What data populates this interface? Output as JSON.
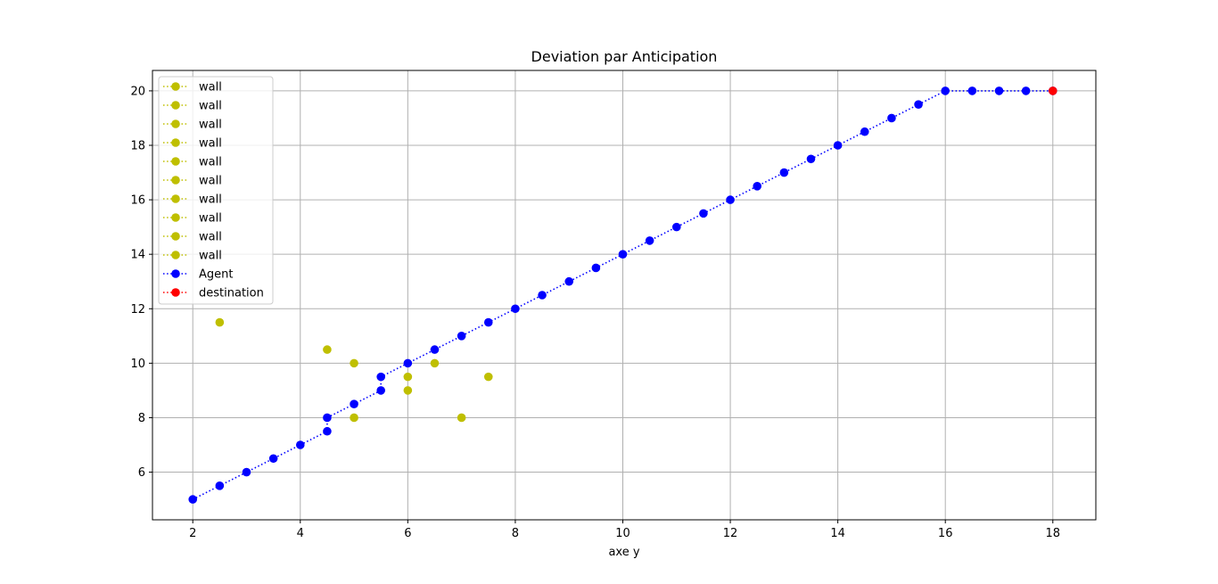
{
  "chart_data": {
    "type": "scatter",
    "title": "Deviation par Anticipation",
    "xlabel": "axe y",
    "ylabel": "",
    "xlim": [
      1.25,
      18.8
    ],
    "ylim": [
      4.25,
      20.75
    ],
    "xticks": [
      2,
      4,
      6,
      8,
      10,
      12,
      14,
      16,
      18
    ],
    "yticks": [
      6,
      8,
      10,
      12,
      14,
      16,
      18,
      20
    ],
    "grid": true,
    "legend_position": "upper-left",
    "series": [
      {
        "name": "wall",
        "color": "#bfbf00",
        "linestyle": "dotted",
        "marker": "circle",
        "x": [
          2.5
        ],
        "y": [
          11.5
        ]
      },
      {
        "name": "wall",
        "color": "#bfbf00",
        "linestyle": "dotted",
        "marker": "circle",
        "x": [
          4.5
        ],
        "y": [
          10.5
        ]
      },
      {
        "name": "wall",
        "color": "#bfbf00",
        "linestyle": "dotted",
        "marker": "circle",
        "x": [
          5
        ],
        "y": [
          10
        ]
      },
      {
        "name": "wall",
        "color": "#bfbf00",
        "linestyle": "dotted",
        "marker": "circle",
        "x": [
          5
        ],
        "y": [
          8
        ]
      },
      {
        "name": "wall",
        "color": "#bfbf00",
        "linestyle": "dotted",
        "marker": "circle",
        "x": [
          6
        ],
        "y": [
          9.5
        ]
      },
      {
        "name": "wall",
        "color": "#bfbf00",
        "linestyle": "dotted",
        "marker": "circle",
        "x": [
          6
        ],
        "y": [
          9
        ]
      },
      {
        "name": "wall",
        "color": "#bfbf00",
        "linestyle": "dotted",
        "marker": "circle",
        "x": [
          6.5
        ],
        "y": [
          10
        ]
      },
      {
        "name": "wall",
        "color": "#bfbf00",
        "linestyle": "dotted",
        "marker": "circle",
        "x": [
          7
        ],
        "y": [
          8
        ]
      },
      {
        "name": "wall",
        "color": "#bfbf00",
        "linestyle": "dotted",
        "marker": "circle",
        "x": [
          7.5
        ],
        "y": [
          9.5
        ]
      },
      {
        "name": "wall",
        "color": "#bfbf00",
        "linestyle": "dotted",
        "marker": "circle",
        "x": [],
        "y": []
      },
      {
        "name": "Agent",
        "color": "#0000ff",
        "linestyle": "dotted",
        "marker": "circle",
        "x": [
          2,
          2.5,
          3,
          3.5,
          4,
          4.5,
          4.5,
          5,
          5.5,
          5.5,
          6,
          6.5,
          7,
          7.5,
          8,
          8.5,
          9,
          9.5,
          10,
          10.5,
          11,
          11.5,
          12,
          12.5,
          13,
          13.5,
          14,
          14.5,
          15,
          15.5,
          16,
          16.5,
          17,
          17.5,
          18
        ],
        "y": [
          5,
          5.5,
          6,
          6.5,
          7,
          7.5,
          8,
          8.5,
          9,
          9.5,
          10,
          10.5,
          11,
          11.5,
          12,
          12.5,
          13,
          13.5,
          14,
          14.5,
          15,
          15.5,
          16,
          16.5,
          17,
          17.5,
          18,
          18.5,
          19,
          19.5,
          20,
          20,
          20,
          20,
          20
        ]
      },
      {
        "name": "destination",
        "color": "#ff0000",
        "linestyle": "dotted",
        "marker": "circle",
        "x": [
          18
        ],
        "y": [
          20
        ]
      }
    ]
  }
}
